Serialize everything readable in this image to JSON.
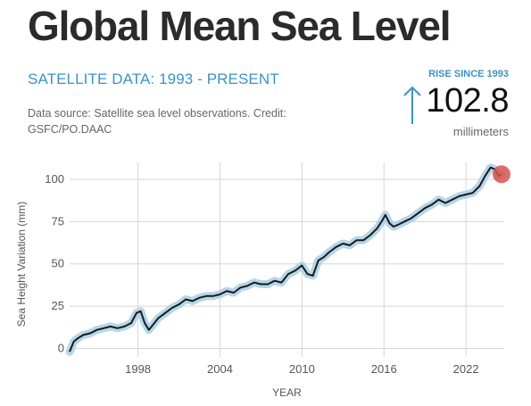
{
  "header": {
    "title": "Global Mean Sea Level",
    "subtitle": "SATELLITE DATA: 1993 - PRESENT",
    "source": "Data source: Satellite sea level observations. Credit: GSFC/PO.DAAC"
  },
  "rise": {
    "label": "RISE SINCE 1993",
    "value": "102.8",
    "unit": "millimeters",
    "arrow_icon": "up-arrow-icon"
  },
  "chart_data": {
    "type": "line",
    "xlabel": "YEAR",
    "ylabel": "Sea Height Variation (mm)",
    "xlim": [
      1993,
      2024.8
    ],
    "ylim": [
      -5,
      110
    ],
    "x_ticks": [
      "1998",
      "2004",
      "2010",
      "2016",
      "2022"
    ],
    "y_ticks": [
      "0",
      "25",
      "50",
      "75",
      "100"
    ],
    "grid": true,
    "colors": {
      "line": "#1a1a1a",
      "band": "#a9cfe6",
      "marker": "#d9534f"
    },
    "series": [
      {
        "x": [
          1993.0,
          1993.3,
          1993.6,
          1994.0,
          1994.5,
          1995.0,
          1995.5,
          1996.0,
          1996.5,
          1997.0,
          1997.5,
          1997.9,
          1998.2,
          1998.5,
          1998.8,
          1999.1,
          1999.5,
          2000.0,
          2000.5,
          2001.0,
          2001.5,
          2002.0,
          2002.5,
          2003.0,
          2003.5,
          2004.0,
          2004.5,
          2005.0,
          2005.5,
          2006.0,
          2006.5,
          2007.0,
          2007.5,
          2008.0,
          2008.5,
          2009.0,
          2009.5,
          2010.0,
          2010.4,
          2010.8,
          2011.2,
          2011.6,
          2012.0,
          2012.5,
          2013.0,
          2013.5,
          2014.0,
          2014.5,
          2015.0,
          2015.5,
          2015.9,
          2016.1,
          2016.4,
          2016.7,
          2017.0,
          2017.5,
          2018.0,
          2018.5,
          2019.0,
          2019.5,
          2020.0,
          2020.5,
          2021.0,
          2021.5,
          2022.0,
          2022.5,
          2023.0,
          2023.4,
          2023.8,
          2024.1,
          2024.4,
          2024.6
        ],
        "y": [
          -2,
          4,
          6,
          8,
          9,
          11,
          12,
          13,
          12,
          13,
          15,
          21,
          22,
          15,
          11,
          14,
          18,
          21,
          24,
          26,
          29,
          28,
          30,
          31,
          31,
          32,
          34,
          33,
          36,
          37,
          39,
          38,
          38,
          40,
          39,
          44,
          46,
          49,
          44,
          43,
          52,
          54,
          57,
          60,
          62,
          61,
          64,
          64,
          67,
          71,
          76,
          79,
          74,
          72,
          73,
          75,
          77,
          80,
          83,
          85,
          88,
          86,
          88,
          90,
          91,
          92,
          96,
          102,
          107,
          106,
          102,
          103
        ]
      }
    ],
    "latest": {
      "x": 2024.6,
      "y": 103
    }
  }
}
